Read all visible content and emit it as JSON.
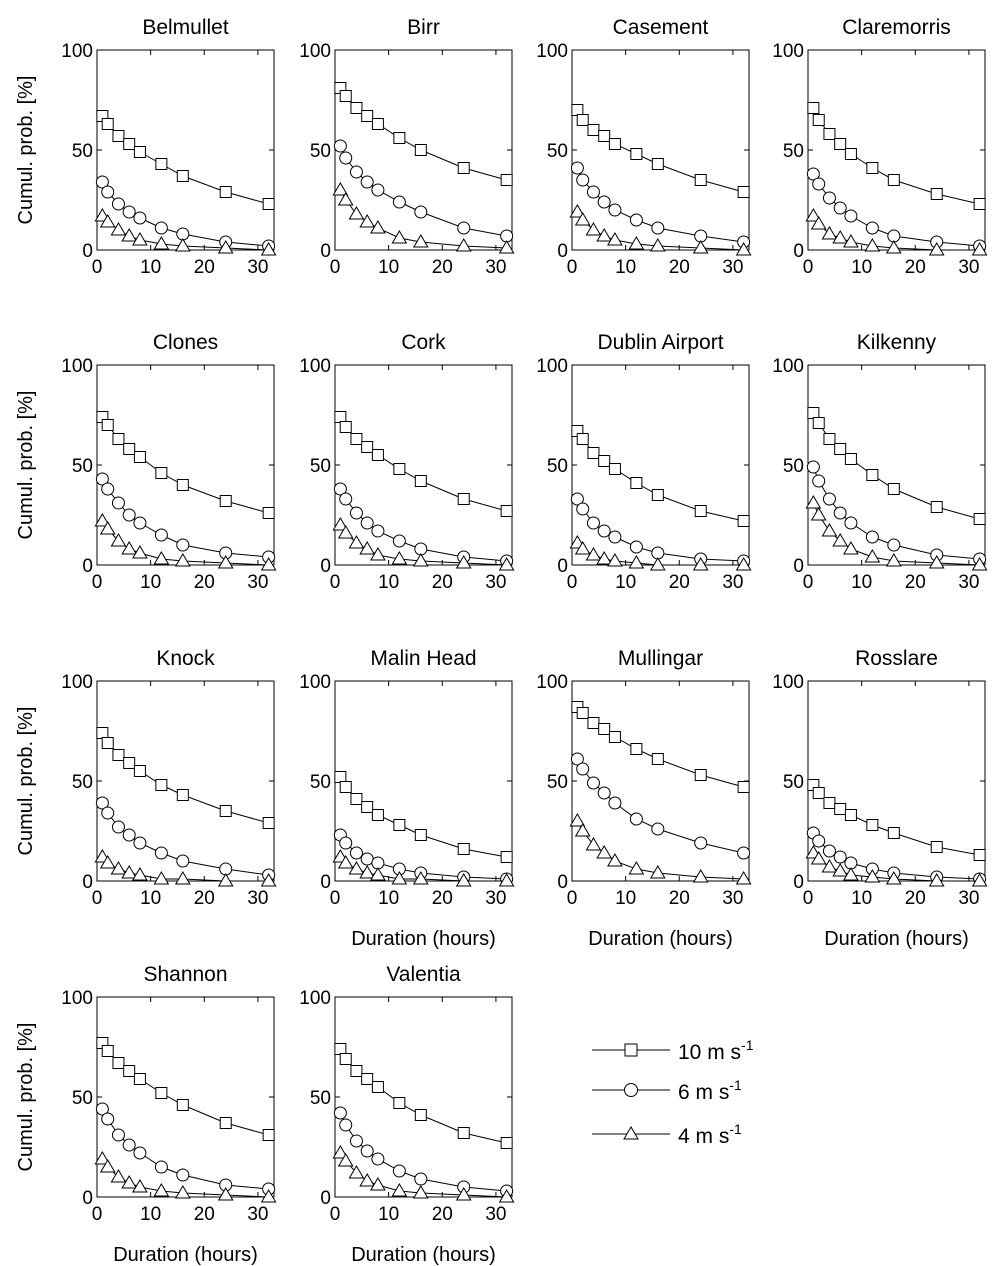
{
  "figure": {
    "legend": [
      {
        "marker": "square",
        "label_main": "10 m s",
        "label_sup": "-1"
      },
      {
        "marker": "circle",
        "label_main": "6 m s",
        "label_sup": "-1"
      },
      {
        "marker": "triangle",
        "label_main": "4 m s",
        "label_sup": "-1"
      }
    ]
  },
  "chart_data": {
    "type": "line",
    "xlabel": "Duration (hours)",
    "ylabel": "Cumul. prob. [%]",
    "xlim": [
      0,
      33
    ],
    "ylim": [
      0,
      100
    ],
    "xticks": [
      0,
      10,
      20,
      30
    ],
    "yticks": [
      0,
      50,
      100
    ],
    "grid": false,
    "legend_position": "bottom-right",
    "marker_colors": {
      "line": "#000000",
      "fill": "#ffffff"
    },
    "x": [
      1,
      2,
      4,
      6,
      8,
      12,
      16,
      24,
      32
    ],
    "panels": [
      {
        "title": "Belmullet",
        "show_ylabel": true,
        "show_xlabel": false,
        "series": [
          {
            "name": "10 m s-1",
            "marker": "square",
            "values": [
              67,
              63,
              57,
              53,
              49,
              43,
              37,
              29,
              23
            ]
          },
          {
            "name": "6 m s-1",
            "marker": "circle",
            "values": [
              34,
              29,
              23,
              19,
              16,
              11,
              8,
              4,
              2
            ]
          },
          {
            "name": "4 m s-1",
            "marker": "triangle",
            "values": [
              17,
              14,
              10,
              7,
              5,
              3,
              2,
              1,
              0
            ]
          }
        ]
      },
      {
        "title": "Birr",
        "show_ylabel": false,
        "show_xlabel": false,
        "series": [
          {
            "name": "10 m s-1",
            "marker": "square",
            "values": [
              81,
              77,
              71,
              67,
              63,
              56,
              50,
              41,
              35
            ]
          },
          {
            "name": "6 m s-1",
            "marker": "circle",
            "values": [
              52,
              46,
              39,
              34,
              30,
              24,
              19,
              11,
              7
            ]
          },
          {
            "name": "4 m s-1",
            "marker": "triangle",
            "values": [
              30,
              25,
              18,
              14,
              11,
              6,
              4,
              2,
              1
            ]
          }
        ]
      },
      {
        "title": "Casement",
        "show_ylabel": false,
        "show_xlabel": false,
        "series": [
          {
            "name": "10 m s-1",
            "marker": "square",
            "values": [
              70,
              65,
              60,
              57,
              53,
              48,
              43,
              35,
              29
            ]
          },
          {
            "name": "6 m s-1",
            "marker": "circle",
            "values": [
              41,
              35,
              29,
              24,
              20,
              15,
              11,
              7,
              4
            ]
          },
          {
            "name": "4 m s-1",
            "marker": "triangle",
            "values": [
              19,
              15,
              10,
              7,
              5,
              3,
              2,
              1,
              0
            ]
          }
        ]
      },
      {
        "title": "Claremorris",
        "show_ylabel": false,
        "show_xlabel": false,
        "series": [
          {
            "name": "10 m s-1",
            "marker": "square",
            "values": [
              71,
              65,
              58,
              53,
              48,
              41,
              35,
              28,
              23
            ]
          },
          {
            "name": "6 m s-1",
            "marker": "circle",
            "values": [
              38,
              33,
              26,
              21,
              17,
              11,
              7,
              4,
              2
            ]
          },
          {
            "name": "4 m s-1",
            "marker": "triangle",
            "values": [
              17,
              13,
              8,
              6,
              4,
              2,
              1,
              0,
              0
            ]
          }
        ]
      },
      {
        "title": "Clones",
        "show_ylabel": true,
        "show_xlabel": false,
        "series": [
          {
            "name": "10 m s-1",
            "marker": "square",
            "values": [
              74,
              70,
              63,
              58,
              54,
              46,
              40,
              32,
              26
            ]
          },
          {
            "name": "6 m s-1",
            "marker": "circle",
            "values": [
              43,
              38,
              31,
              25,
              21,
              15,
              10,
              6,
              4
            ]
          },
          {
            "name": "4 m s-1",
            "marker": "triangle",
            "values": [
              22,
              18,
              12,
              8,
              6,
              3,
              2,
              1,
              0
            ]
          }
        ]
      },
      {
        "title": "Cork",
        "show_ylabel": false,
        "show_xlabel": false,
        "series": [
          {
            "name": "10 m s-1",
            "marker": "square",
            "values": [
              74,
              69,
              63,
              59,
              55,
              48,
              42,
              33,
              27
            ]
          },
          {
            "name": "6 m s-1",
            "marker": "circle",
            "values": [
              38,
              33,
              26,
              21,
              17,
              12,
              8,
              4,
              2
            ]
          },
          {
            "name": "4 m s-1",
            "marker": "triangle",
            "values": [
              20,
              16,
              11,
              8,
              5,
              3,
              2,
              1,
              0
            ]
          }
        ]
      },
      {
        "title": "Dublin Airport",
        "show_ylabel": false,
        "show_xlabel": false,
        "series": [
          {
            "name": "10 m s-1",
            "marker": "square",
            "values": [
              67,
              63,
              56,
              52,
              48,
              41,
              35,
              27,
              22
            ]
          },
          {
            "name": "6 m s-1",
            "marker": "circle",
            "values": [
              33,
              28,
              21,
              17,
              14,
              9,
              6,
              3,
              2
            ]
          },
          {
            "name": "4 m s-1",
            "marker": "triangle",
            "values": [
              11,
              8,
              5,
              3,
              2,
              1,
              0,
              0,
              0
            ]
          }
        ]
      },
      {
        "title": "Kilkenny",
        "show_ylabel": false,
        "show_xlabel": false,
        "series": [
          {
            "name": "10 m s-1",
            "marker": "square",
            "values": [
              76,
              71,
              63,
              58,
              53,
              45,
              38,
              29,
              23
            ]
          },
          {
            "name": "6 m s-1",
            "marker": "circle",
            "values": [
              49,
              42,
              33,
              26,
              21,
              14,
              10,
              5,
              3
            ]
          },
          {
            "name": "4 m s-1",
            "marker": "triangle",
            "values": [
              31,
              25,
              17,
              12,
              8,
              4,
              2,
              1,
              0
            ]
          }
        ]
      },
      {
        "title": "Knock",
        "show_ylabel": true,
        "show_xlabel": false,
        "series": [
          {
            "name": "10 m s-1",
            "marker": "square",
            "values": [
              74,
              69,
              63,
              59,
              55,
              48,
              43,
              35,
              29
            ]
          },
          {
            "name": "6 m s-1",
            "marker": "circle",
            "values": [
              39,
              34,
              27,
              23,
              19,
              14,
              10,
              6,
              3
            ]
          },
          {
            "name": "4 m s-1",
            "marker": "triangle",
            "values": [
              12,
              9,
              6,
              4,
              3,
              1,
              1,
              0,
              0
            ]
          }
        ]
      },
      {
        "title": "Malin Head",
        "show_ylabel": false,
        "show_xlabel": true,
        "series": [
          {
            "name": "10 m s-1",
            "marker": "square",
            "values": [
              52,
              47,
              41,
              37,
              33,
              28,
              23,
              16,
              12
            ]
          },
          {
            "name": "6 m s-1",
            "marker": "circle",
            "values": [
              23,
              19,
              14,
              11,
              9,
              6,
              4,
              2,
              1
            ]
          },
          {
            "name": "4 m s-1",
            "marker": "triangle",
            "values": [
              12,
              9,
              6,
              4,
              3,
              1,
              1,
              0,
              0
            ]
          }
        ]
      },
      {
        "title": "Mullingar",
        "show_ylabel": false,
        "show_xlabel": true,
        "series": [
          {
            "name": "10 m s-1",
            "marker": "square",
            "values": [
              87,
              84,
              79,
              76,
              72,
              66,
              61,
              53,
              47
            ]
          },
          {
            "name": "6 m s-1",
            "marker": "circle",
            "values": [
              61,
              56,
              49,
              44,
              39,
              31,
              26,
              19,
              14
            ]
          },
          {
            "name": "4 m s-1",
            "marker": "triangle",
            "values": [
              30,
              25,
              18,
              14,
              10,
              6,
              4,
              2,
              1
            ]
          }
        ]
      },
      {
        "title": "Rosslare",
        "show_ylabel": false,
        "show_xlabel": true,
        "series": [
          {
            "name": "10 m s-1",
            "marker": "square",
            "values": [
              48,
              44,
              39,
              36,
              33,
              28,
              24,
              17,
              13
            ]
          },
          {
            "name": "6 m s-1",
            "marker": "circle",
            "values": [
              24,
              20,
              15,
              12,
              9,
              6,
              4,
              2,
              1
            ]
          },
          {
            "name": "4 m s-1",
            "marker": "triangle",
            "values": [
              14,
              11,
              7,
              5,
              3,
              2,
              1,
              0,
              0
            ]
          }
        ]
      },
      {
        "title": "Shannon",
        "show_ylabel": true,
        "show_xlabel": true,
        "series": [
          {
            "name": "10 m s-1",
            "marker": "square",
            "values": [
              77,
              73,
              67,
              63,
              59,
              52,
              46,
              37,
              31
            ]
          },
          {
            "name": "6 m s-1",
            "marker": "circle",
            "values": [
              44,
              39,
              31,
              26,
              22,
              15,
              11,
              6,
              4
            ]
          },
          {
            "name": "4 m s-1",
            "marker": "triangle",
            "values": [
              19,
              15,
              10,
              7,
              5,
              3,
              2,
              1,
              0
            ]
          }
        ]
      },
      {
        "title": "Valentia",
        "show_ylabel": false,
        "show_xlabel": true,
        "series": [
          {
            "name": "10 m s-1",
            "marker": "square",
            "values": [
              74,
              69,
              63,
              59,
              55,
              47,
              41,
              32,
              27
            ]
          },
          {
            "name": "6 m s-1",
            "marker": "circle",
            "values": [
              42,
              36,
              28,
              23,
              19,
              13,
              9,
              5,
              3
            ]
          },
          {
            "name": "4 m s-1",
            "marker": "triangle",
            "values": [
              22,
              18,
              12,
              8,
              6,
              3,
              2,
              1,
              0
            ]
          }
        ]
      }
    ]
  }
}
